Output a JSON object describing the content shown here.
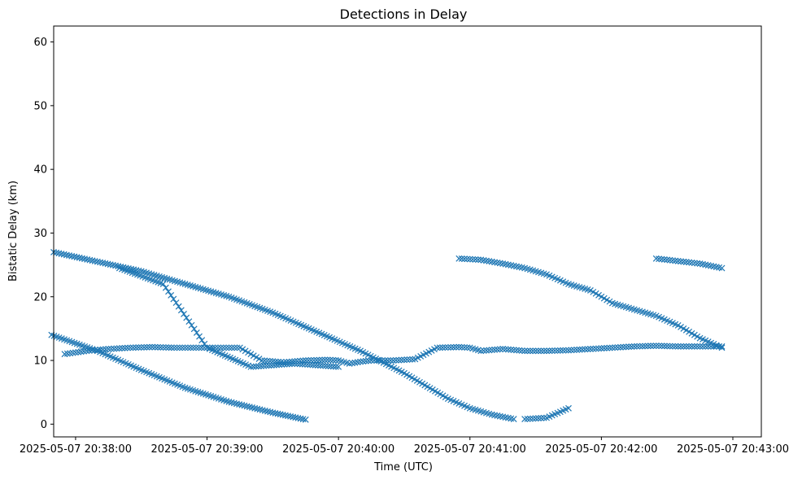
{
  "chart_data": {
    "type": "scatter",
    "title": "Detections in Delay",
    "xlabel": "Time (UTC)",
    "ylabel": "Bistatic Delay (km)",
    "x_scale": "time",
    "xlim": [
      "2025-05-07 20:37:50",
      "2025-05-07 20:43:13"
    ],
    "ylim": [
      -2,
      62.5
    ],
    "x_ticks": [
      "2025-05-07 20:38:00",
      "2025-05-07 20:39:00",
      "2025-05-07 20:40:00",
      "2025-05-07 20:41:00",
      "2025-05-07 20:42:00",
      "2025-05-07 20:43:00"
    ],
    "y_ticks": [
      0,
      10,
      20,
      30,
      40,
      50,
      60
    ],
    "grid": false,
    "legend": "none",
    "marker": "x",
    "color": "#1f77b4",
    "series": [
      {
        "tracks": [
          {
            "x": [
              "2025-05-07 20:37:49",
              "2025-05-07 20:38:10",
              "2025-05-07 20:38:30",
              "2025-05-07 20:38:50",
              "2025-05-07 20:39:10",
              "2025-05-07 20:39:30",
              "2025-05-07 20:39:45"
            ],
            "y": [
              14.0,
              11.5,
              8.5,
              5.7,
              3.5,
              1.8,
              0.7
            ]
          },
          {
            "x": [
              "2025-05-07 20:37:55",
              "2025-05-07 20:38:05",
              "2025-05-07 20:38:15",
              "2025-05-07 20:38:25",
              "2025-05-07 20:38:35",
              "2025-05-07 20:38:45",
              "2025-05-07 20:38:55",
              "2025-05-07 20:39:05",
              "2025-05-07 20:39:15",
              "2025-05-07 20:39:25",
              "2025-05-07 20:39:35",
              "2025-05-07 20:39:45",
              "2025-05-07 20:39:55",
              "2025-05-07 20:40:00",
              "2025-05-07 20:40:05",
              "2025-05-07 20:40:10",
              "2025-05-07 20:40:15",
              "2025-05-07 20:40:25",
              "2025-05-07 20:40:35",
              "2025-05-07 20:40:45",
              "2025-05-07 20:40:55",
              "2025-05-07 20:41:00",
              "2025-05-07 20:41:05",
              "2025-05-07 20:41:15",
              "2025-05-07 20:41:25",
              "2025-05-07 20:41:35",
              "2025-05-07 20:41:45",
              "2025-05-07 20:41:55",
              "2025-05-07 20:42:05",
              "2025-05-07 20:42:15",
              "2025-05-07 20:42:25",
              "2025-05-07 20:42:35",
              "2025-05-07 20:42:45",
              "2025-05-07 20:42:55"
            ],
            "y": [
              11.0,
              11.5,
              11.8,
              12.0,
              12.1,
              12.0,
              12.0,
              12.0,
              12.0,
              10.0,
              9.7,
              10.0,
              10.1,
              10.0,
              9.5,
              9.8,
              10.0,
              10.0,
              10.2,
              12.0,
              12.1,
              12.0,
              11.5,
              11.8,
              11.5,
              11.5,
              11.6,
              11.8,
              12.0,
              12.2,
              12.3,
              12.2,
              12.2,
              12.2
            ]
          },
          {
            "x": [
              "2025-05-07 20:37:50",
              "2025-05-07 20:38:10",
              "2025-05-07 20:38:30",
              "2025-05-07 20:38:50",
              "2025-05-07 20:39:10",
              "2025-05-07 20:39:30",
              "2025-05-07 20:39:50",
              "2025-05-07 20:40:10",
              "2025-05-07 20:40:30",
              "2025-05-07 20:40:50",
              "2025-05-07 20:41:00",
              "2025-05-07 20:41:10",
              "2025-05-07 20:41:20"
            ],
            "y": [
              27.0,
              25.5,
              24.0,
              22.0,
              20.0,
              17.5,
              14.5,
              11.5,
              8.0,
              4.0,
              2.5,
              1.5,
              0.8
            ]
          },
          {
            "x": [
              "2025-05-07 20:38:20",
              "2025-05-07 20:38:40",
              "2025-05-07 20:39:00",
              "2025-05-07 20:39:20",
              "2025-05-07 20:39:40",
              "2025-05-07 20:40:00"
            ],
            "y": [
              24.5,
              22.0,
              12.0,
              9.0,
              9.5,
              9.0
            ]
          },
          {
            "x": [
              "2025-05-07 20:40:55",
              "2025-05-07 20:41:05",
              "2025-05-07 20:41:15",
              "2025-05-07 20:41:25",
              "2025-05-07 20:41:35",
              "2025-05-07 20:41:45",
              "2025-05-07 20:41:55",
              "2025-05-07 20:42:05",
              "2025-05-07 20:42:15",
              "2025-05-07 20:42:25",
              "2025-05-07 20:42:35",
              "2025-05-07 20:42:45",
              "2025-05-07 20:42:55"
            ],
            "y": [
              26.0,
              25.8,
              25.2,
              24.5,
              23.5,
              22.0,
              21.0,
              19.0,
              18.0,
              17.0,
              15.5,
              13.5,
              12.0
            ]
          },
          {
            "x": [
              "2025-05-07 20:41:25",
              "2025-05-07 20:41:35",
              "2025-05-07 20:41:45"
            ],
            "y": [
              0.8,
              1.0,
              2.5
            ]
          },
          {
            "x": [
              "2025-05-07 20:42:25",
              "2025-05-07 20:42:35",
              "2025-05-07 20:42:45",
              "2025-05-07 20:42:55"
            ],
            "y": [
              26.0,
              25.6,
              25.2,
              24.5
            ]
          }
        ]
      }
    ]
  }
}
